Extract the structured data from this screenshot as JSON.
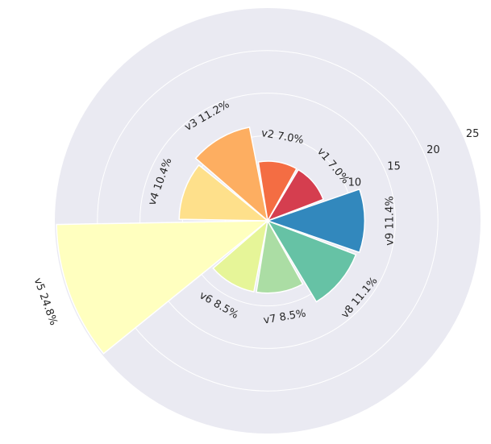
{
  "chart_data": {
    "type": "polar-bar",
    "categories": [
      "v1",
      "v2",
      "v3",
      "v4",
      "v5",
      "v6",
      "v7",
      "v8",
      "v9"
    ],
    "values": [
      7.0,
      7.0,
      11.2,
      10.4,
      24.8,
      8.5,
      8.5,
      11.1,
      11.4
    ],
    "labels": [
      "v1 7.0%",
      "v2 7.0%",
      "v3 11.2%",
      "v4 10.4%",
      "v5 24.8%",
      "v6 8.5%",
      "v7 8.5%",
      "v8 11.1%",
      "v9 11.4%"
    ],
    "colors": [
      "#d53e4f",
      "#f46d43",
      "#fdae61",
      "#fee08b",
      "#ffffbf",
      "#e6f598",
      "#abdda4",
      "#66c2a5",
      "#3288bd"
    ],
    "r_ticks": [
      10,
      15,
      20,
      25
    ],
    "r_tick_labels": [
      "10",
      "15",
      "20",
      "25"
    ],
    "rlim": [
      0,
      25
    ],
    "inner_grid_radius": 5,
    "grid": true,
    "background": "#eaeaf2",
    "title": ""
  }
}
